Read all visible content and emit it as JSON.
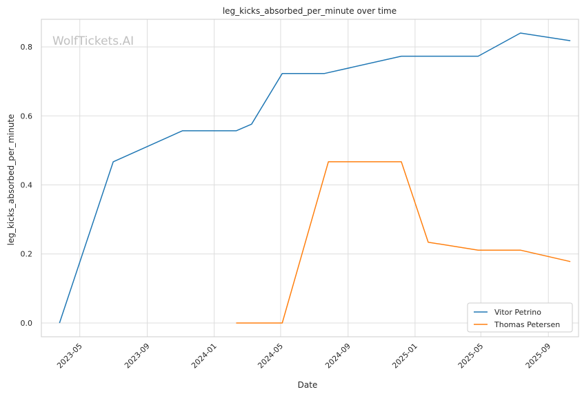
{
  "chart_data": {
    "type": "line",
    "title": "leg_kicks_absorbed_per_minute over time",
    "xlabel": "Date",
    "ylabel": "leg_kicks_absorbed_per_minute",
    "watermark": "WolfTickets.AI",
    "x_ticks": [
      "2023-05",
      "2023-09",
      "2024-01",
      "2024-05",
      "2024-09",
      "2025-01",
      "2025-05",
      "2025-09"
    ],
    "y_ticks": [
      "0.0",
      "0.2",
      "0.4",
      "0.6",
      "0.8"
    ],
    "xlim": [
      "2023-02-20",
      "2025-10-26"
    ],
    "ylim": [
      -0.04,
      0.88
    ],
    "grid": true,
    "legend_position": "lower-right",
    "series": [
      {
        "name": "Vitor Petrino",
        "color": "#1f77b4",
        "points": [
          {
            "x": "2023-03-25",
            "y": 0.0
          },
          {
            "x": "2023-07-01",
            "y": 0.467
          },
          {
            "x": "2023-11-04",
            "y": 0.557
          },
          {
            "x": "2024-02-10",
            "y": 0.557
          },
          {
            "x": "2024-03-09",
            "y": 0.576
          },
          {
            "x": "2024-05-04",
            "y": 0.723
          },
          {
            "x": "2024-07-20",
            "y": 0.723
          },
          {
            "x": "2024-12-07",
            "y": 0.773
          },
          {
            "x": "2025-04-26",
            "y": 0.773
          },
          {
            "x": "2025-07-12",
            "y": 0.84
          },
          {
            "x": "2025-10-11",
            "y": 0.818
          }
        ]
      },
      {
        "name": "Thomas Petersen",
        "color": "#ff7f0e",
        "points": [
          {
            "x": "2024-02-10",
            "y": 0.0
          },
          {
            "x": "2024-05-04",
            "y": 0.0
          },
          {
            "x": "2024-07-27",
            "y": 0.467
          },
          {
            "x": "2024-12-07",
            "y": 0.467
          },
          {
            "x": "2025-01-25",
            "y": 0.234
          },
          {
            "x": "2025-04-26",
            "y": 0.211
          },
          {
            "x": "2025-07-12",
            "y": 0.211
          },
          {
            "x": "2025-10-11",
            "y": 0.178
          }
        ]
      }
    ]
  }
}
